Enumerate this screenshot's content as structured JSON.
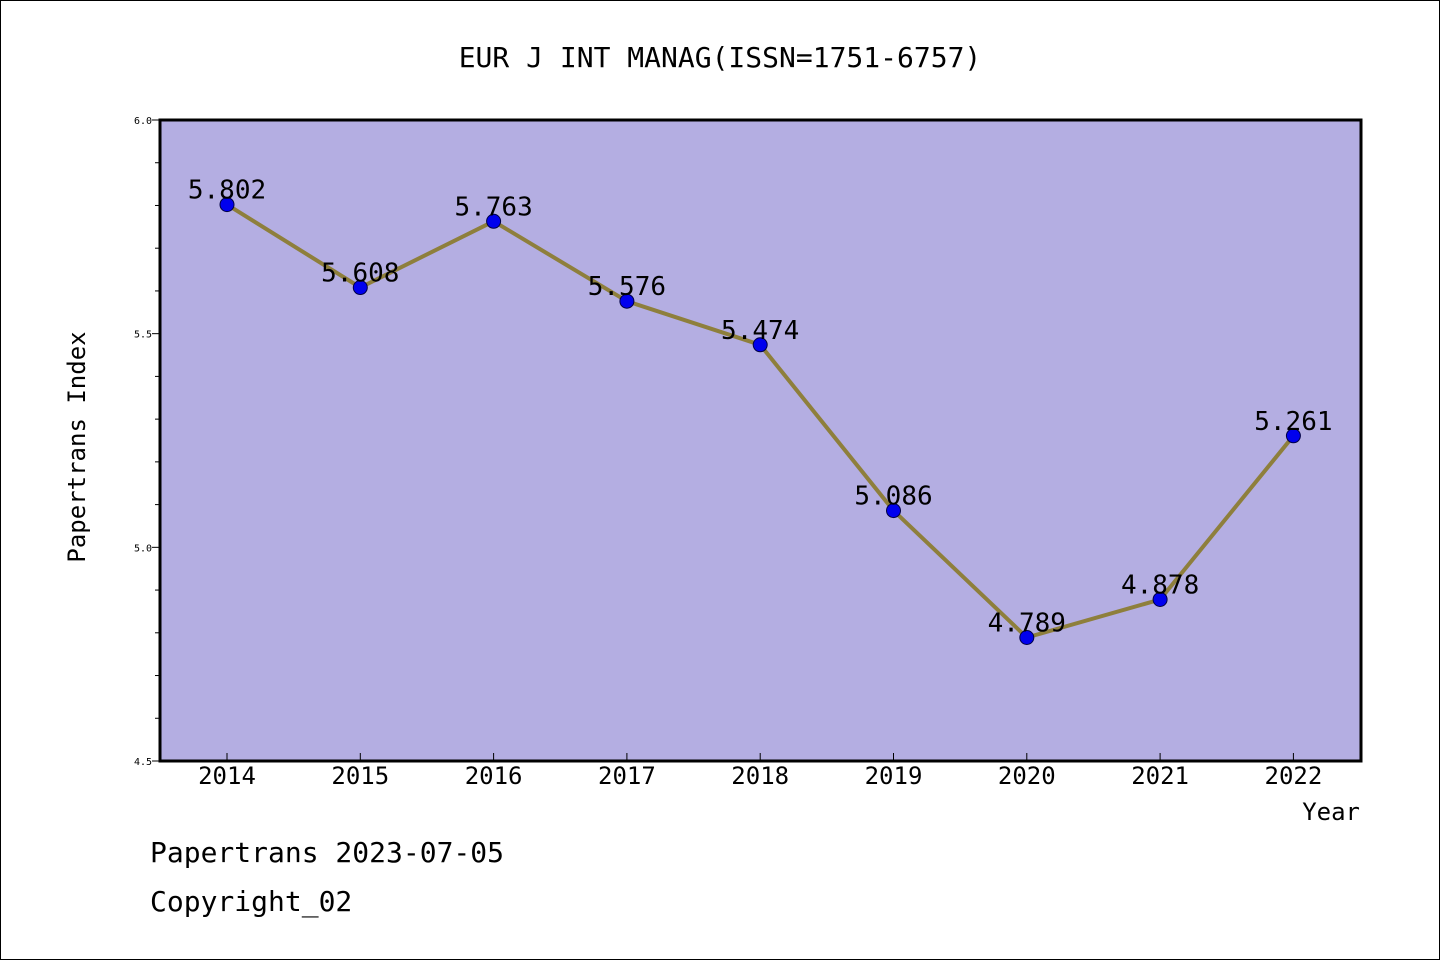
{
  "chart_data": {
    "type": "line",
    "title": "EUR J INT MANAG(ISSN=1751-6757)",
    "xlabel": "Year",
    "ylabel": "Papertrans Index",
    "categories": [
      "2014",
      "2015",
      "2016",
      "2017",
      "2018",
      "2019",
      "2020",
      "2021",
      "2022"
    ],
    "series": [
      {
        "values": [
          5.802,
          5.608,
          5.763,
          5.576,
          5.474,
          5.086,
          4.789,
          4.878,
          5.261
        ]
      }
    ],
    "data_labels": [
      "5.802",
      "5.608",
      "5.763",
      "5.576",
      "5.474",
      "5.086",
      "4.789",
      "4.878",
      "5.261"
    ],
    "ylim": [
      4.5,
      6.0
    ],
    "yticks": [
      "4.5",
      "5.0",
      "5.5",
      "6.0"
    ],
    "grid": false,
    "colors": {
      "plot_background": "#b4aee2",
      "line": "#8e7f3c",
      "marker": "#0000ee"
    }
  },
  "footer": {
    "date_text": "Papertrans 2023-07-05",
    "copyright_text": "Copyright_02"
  }
}
